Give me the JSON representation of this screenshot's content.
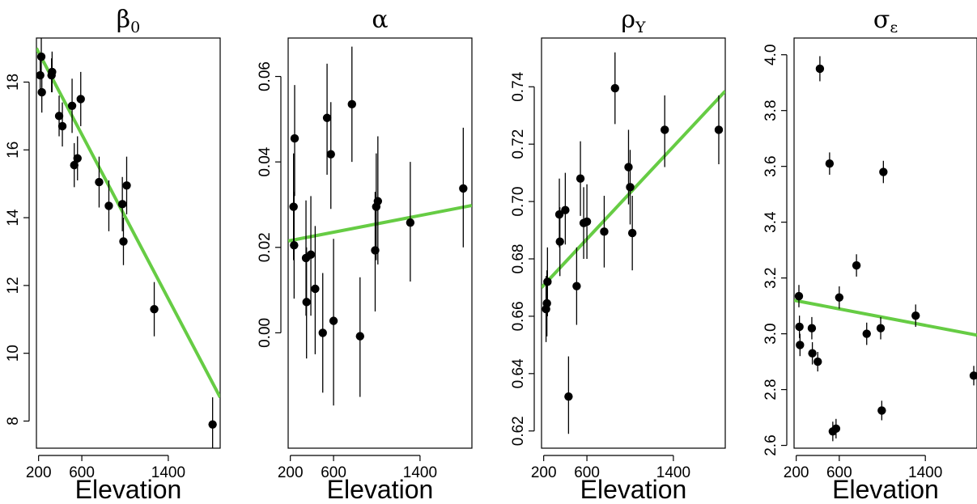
{
  "colors": {
    "fit_line": "#66cc44",
    "points": "#000000"
  },
  "chart_data": [
    {
      "type": "scatter",
      "title": "β",
      "title_sub": "0",
      "xlabel": "Elevation",
      "ylabel": "",
      "xlim": [
        180,
        1880
      ],
      "ylim": [
        7.2,
        19.3
      ],
      "xticks": [
        200,
        600,
        1400
      ],
      "yticks": [
        8,
        10,
        12,
        14,
        16,
        18
      ],
      "grid": false,
      "points": [
        {
          "x": 225,
          "y": 18.75,
          "lo": 18.3,
          "hi": 19.35
        },
        {
          "x": 215,
          "y": 18.2,
          "lo": 17.7,
          "hi": 18.7
        },
        {
          "x": 230,
          "y": 17.7,
          "lo": 17.1,
          "hi": 18.3
        },
        {
          "x": 320,
          "y": 18.2,
          "lo": 17.7,
          "hi": 18.7
        },
        {
          "x": 325,
          "y": 18.3,
          "lo": 17.7,
          "hi": 18.9
        },
        {
          "x": 390,
          "y": 17.0,
          "lo": 16.4,
          "hi": 17.6
        },
        {
          "x": 420,
          "y": 16.7,
          "lo": 16.1,
          "hi": 17.4
        },
        {
          "x": 510,
          "y": 17.3,
          "lo": 16.5,
          "hi": 18.1
        },
        {
          "x": 530,
          "y": 15.55,
          "lo": 14.9,
          "hi": 16.2
        },
        {
          "x": 560,
          "y": 15.75,
          "lo": 15.1,
          "hi": 16.4
        },
        {
          "x": 590,
          "y": 17.5,
          "lo": 16.7,
          "hi": 18.3
        },
        {
          "x": 760,
          "y": 15.05,
          "lo": 14.3,
          "hi": 15.8
        },
        {
          "x": 850,
          "y": 14.35,
          "lo": 13.6,
          "hi": 15.1
        },
        {
          "x": 975,
          "y": 14.4,
          "lo": 13.6,
          "hi": 15.2
        },
        {
          "x": 985,
          "y": 13.3,
          "lo": 12.6,
          "hi": 14.0
        },
        {
          "x": 1015,
          "y": 14.95,
          "lo": 14.1,
          "hi": 15.8
        },
        {
          "x": 1270,
          "y": 11.3,
          "lo": 10.5,
          "hi": 12.1
        },
        {
          "x": 1810,
          "y": 7.9,
          "lo": 7.1,
          "hi": 8.7
        }
      ],
      "fit": {
        "x": [
          180,
          1880
        ],
        "y": [
          19.0,
          8.7
        ]
      }
    },
    {
      "type": "scatter",
      "title": "α",
      "title_sub": "",
      "xlabel": "Elevation",
      "ylabel": "",
      "xlim": [
        180,
        1880
      ],
      "ylim": [
        -0.027,
        0.069
      ],
      "xticks": [
        200,
        600,
        1400
      ],
      "yticks": [
        0.0,
        0.02,
        0.04,
        0.06
      ],
      "ytick_labels": [
        "0.00",
        "0.02",
        "0.04",
        "0.06"
      ],
      "grid": false,
      "points": [
        {
          "x": 230,
          "y": 0.0295,
          "lo": 0.017,
          "hi": 0.042
        },
        {
          "x": 235,
          "y": 0.0205,
          "lo": 0.008,
          "hi": 0.033
        },
        {
          "x": 240,
          "y": 0.0455,
          "lo": 0.032,
          "hi": 0.058
        },
        {
          "x": 345,
          "y": 0.0175,
          "lo": 0.004,
          "hi": 0.031
        },
        {
          "x": 350,
          "y": 0.0072,
          "lo": -0.006,
          "hi": 0.02
        },
        {
          "x": 390,
          "y": 0.0183,
          "lo": 0.004,
          "hi": 0.032
        },
        {
          "x": 430,
          "y": 0.0103,
          "lo": -0.005,
          "hi": 0.025
        },
        {
          "x": 500,
          "y": 0.0,
          "lo": -0.014,
          "hi": 0.014
        },
        {
          "x": 540,
          "y": 0.0503,
          "lo": 0.037,
          "hi": 0.063
        },
        {
          "x": 575,
          "y": 0.0418,
          "lo": 0.029,
          "hi": 0.054
        },
        {
          "x": 600,
          "y": 0.0028,
          "lo": -0.017,
          "hi": 0.022
        },
        {
          "x": 770,
          "y": 0.0535,
          "lo": 0.04,
          "hi": 0.067
        },
        {
          "x": 845,
          "y": -0.0008,
          "lo": -0.015,
          "hi": 0.013
        },
        {
          "x": 985,
          "y": 0.0193,
          "lo": 0.005,
          "hi": 0.033
        },
        {
          "x": 995,
          "y": 0.0295,
          "lo": 0.017,
          "hi": 0.042
        },
        {
          "x": 1010,
          "y": 0.0308,
          "lo": 0.016,
          "hi": 0.046
        },
        {
          "x": 1310,
          "y": 0.0258,
          "lo": 0.012,
          "hi": 0.04
        },
        {
          "x": 1800,
          "y": 0.0338,
          "lo": 0.02,
          "hi": 0.048
        }
      ],
      "fit": {
        "x": [
          180,
          1880
        ],
        "y": [
          0.0215,
          0.0298
        ]
      }
    },
    {
      "type": "scatter",
      "title": "ρ",
      "title_sub": "Y",
      "xlabel": "Elevation",
      "ylabel": "",
      "xlim": [
        180,
        1880
      ],
      "ylim": [
        0.614,
        0.757
      ],
      "xticks": [
        200,
        600,
        1400
      ],
      "yticks": [
        0.62,
        0.64,
        0.66,
        0.68,
        0.7,
        0.72,
        0.74
      ],
      "ytick_labels": [
        "0.62",
        "0.64",
        "0.66",
        "0.68",
        "0.70",
        "0.72",
        "0.74"
      ],
      "grid": false,
      "points": [
        {
          "x": 222,
          "y": 0.6625,
          "lo": 0.651,
          "hi": 0.674
        },
        {
          "x": 230,
          "y": 0.6645,
          "lo": 0.653,
          "hi": 0.676
        },
        {
          "x": 235,
          "y": 0.672,
          "lo": 0.66,
          "hi": 0.684
        },
        {
          "x": 345,
          "y": 0.6955,
          "lo": 0.684,
          "hi": 0.708
        },
        {
          "x": 350,
          "y": 0.686,
          "lo": 0.674,
          "hi": 0.698
        },
        {
          "x": 400,
          "y": 0.697,
          "lo": 0.685,
          "hi": 0.71
        },
        {
          "x": 430,
          "y": 0.632,
          "lo": 0.619,
          "hi": 0.646
        },
        {
          "x": 505,
          "y": 0.6705,
          "lo": 0.657,
          "hi": 0.684
        },
        {
          "x": 540,
          "y": 0.708,
          "lo": 0.695,
          "hi": 0.721
        },
        {
          "x": 570,
          "y": 0.6925,
          "lo": 0.68,
          "hi": 0.705
        },
        {
          "x": 600,
          "y": 0.693,
          "lo": 0.68,
          "hi": 0.706
        },
        {
          "x": 760,
          "y": 0.6895,
          "lo": 0.677,
          "hi": 0.702
        },
        {
          "x": 860,
          "y": 0.7395,
          "lo": 0.727,
          "hi": 0.752
        },
        {
          "x": 985,
          "y": 0.712,
          "lo": 0.699,
          "hi": 0.725
        },
        {
          "x": 1000,
          "y": 0.705,
          "lo": 0.692,
          "hi": 0.718
        },
        {
          "x": 1020,
          "y": 0.689,
          "lo": 0.676,
          "hi": 0.702
        },
        {
          "x": 1320,
          "y": 0.725,
          "lo": 0.712,
          "hi": 0.737
        },
        {
          "x": 1820,
          "y": 0.725,
          "lo": 0.713,
          "hi": 0.737
        }
      ],
      "fit": {
        "x": [
          180,
          1880
        ],
        "y": [
          0.67,
          0.7385
        ]
      }
    },
    {
      "type": "scatter",
      "title": "σ",
      "title_sub": "ε",
      "xlabel": "Elevation",
      "ylabel": "",
      "xlim": [
        180,
        1880
      ],
      "ylim": [
        2.59,
        4.06
      ],
      "xticks": [
        200,
        600,
        1400
      ],
      "yticks": [
        2.6,
        2.8,
        3.0,
        3.2,
        3.4,
        3.6,
        3.8,
        4.0
      ],
      "ytick_labels": [
        "2.6",
        "2.8",
        "3.0",
        "3.2",
        "3.4",
        "3.6",
        "3.8",
        "4.0"
      ],
      "grid": false,
      "points": [
        {
          "x": 225,
          "y": 3.135,
          "lo": 3.095,
          "hi": 3.175
        },
        {
          "x": 230,
          "y": 3.025,
          "lo": 2.985,
          "hi": 3.065
        },
        {
          "x": 235,
          "y": 2.96,
          "lo": 2.92,
          "hi": 3.0
        },
        {
          "x": 345,
          "y": 3.02,
          "lo": 2.98,
          "hi": 3.06
        },
        {
          "x": 350,
          "y": 2.93,
          "lo": 2.89,
          "hi": 2.97
        },
        {
          "x": 400,
          "y": 2.9,
          "lo": 2.865,
          "hi": 2.935
        },
        {
          "x": 420,
          "y": 3.95,
          "lo": 3.905,
          "hi": 3.995
        },
        {
          "x": 510,
          "y": 3.61,
          "lo": 3.57,
          "hi": 3.65
        },
        {
          "x": 540,
          "y": 2.65,
          "lo": 2.615,
          "hi": 2.685
        },
        {
          "x": 570,
          "y": 2.66,
          "lo": 2.625,
          "hi": 2.695
        },
        {
          "x": 600,
          "y": 3.13,
          "lo": 3.09,
          "hi": 3.17
        },
        {
          "x": 760,
          "y": 3.245,
          "lo": 3.205,
          "hi": 3.285
        },
        {
          "x": 855,
          "y": 3.0,
          "lo": 2.96,
          "hi": 3.04
        },
        {
          "x": 985,
          "y": 3.02,
          "lo": 2.98,
          "hi": 3.06
        },
        {
          "x": 995,
          "y": 2.725,
          "lo": 2.69,
          "hi": 2.76
        },
        {
          "x": 1010,
          "y": 3.58,
          "lo": 3.54,
          "hi": 3.62
        },
        {
          "x": 1310,
          "y": 3.065,
          "lo": 3.025,
          "hi": 3.105
        },
        {
          "x": 1850,
          "y": 2.85,
          "lo": 2.815,
          "hi": 2.885
        }
      ],
      "fit": {
        "x": [
          180,
          1880
        ],
        "y": [
          3.12,
          2.995
        ]
      }
    }
  ]
}
